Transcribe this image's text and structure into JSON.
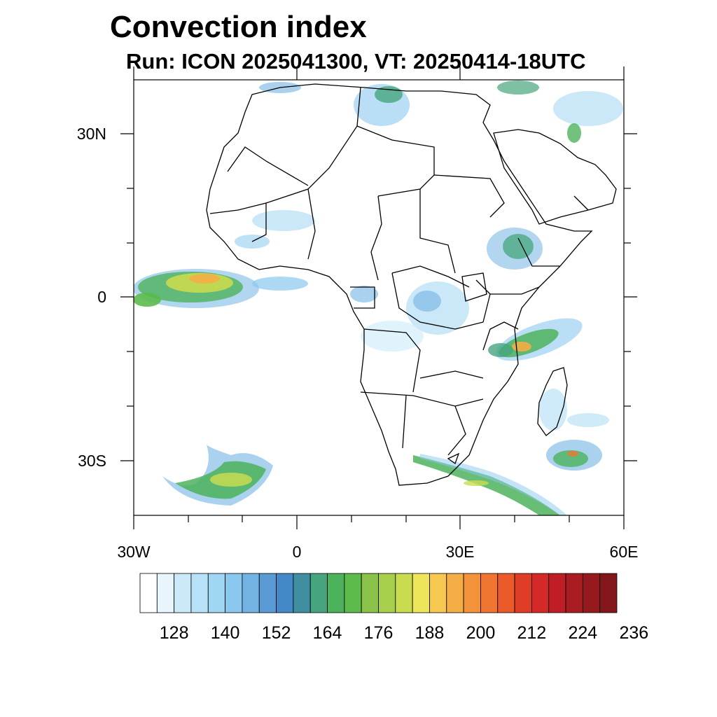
{
  "header": {
    "title": "Convection index",
    "subtitle": "Run: ICON 2025041300,  VT: 20250414-18UTC"
  },
  "axes": {
    "lat_labels": [
      "30N",
      "0",
      "30S"
    ],
    "lon_labels": [
      "30W",
      "0",
      "30E",
      "60E"
    ],
    "lon_range": [
      -30,
      60
    ],
    "lat_range": [
      -40,
      40
    ]
  },
  "colorbar": {
    "tick_labels": [
      "128",
      "140",
      "152",
      "164",
      "176",
      "188",
      "200",
      "212",
      "224",
      "236"
    ],
    "colors": [
      "#ffffff",
      "#e8f5fc",
      "#cbe9f8",
      "#b7e1f7",
      "#9fd6f3",
      "#8ac8ef",
      "#72b3e3",
      "#5b9bd5",
      "#4389c8",
      "#3f8fa0",
      "#46a57e",
      "#4cb35c",
      "#5cbb4b",
      "#8bc34a",
      "#a8cf4c",
      "#c9dc50",
      "#ede55a",
      "#f7c84f",
      "#f5ad45",
      "#f39339",
      "#ef7530",
      "#ea5a2b",
      "#e03d27",
      "#d42927",
      "#c01e26",
      "#a81c22",
      "#95191d",
      "#83161a"
    ]
  },
  "legend_field": "Convection index"
}
